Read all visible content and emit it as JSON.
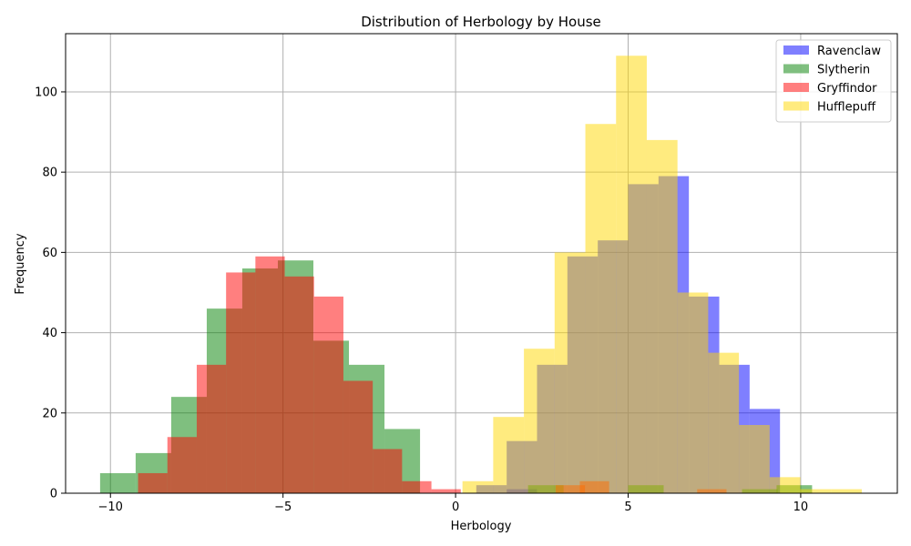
{
  "chart_data": {
    "type": "histogram",
    "title": "Distribution of Herbology by House",
    "xlabel": "Herbology",
    "ylabel": "Frequency",
    "xlim": [
      -11.3,
      12.8
    ],
    "ylim": [
      0,
      114.5
    ],
    "xticks": [
      -10,
      -5,
      0,
      5,
      10
    ],
    "yticks": [
      0,
      20,
      40,
      60,
      80,
      100
    ],
    "grid": true,
    "legend_position": "top-right",
    "series": [
      {
        "name": "Ravenclaw",
        "color": "#0000ff",
        "alpha": 0.5,
        "bin_width": 0.88,
        "bins": [
          {
            "x0": 0.6,
            "y": 2
          },
          {
            "x0": 1.48,
            "y": 1
          },
          {
            "x0": 1.48,
            "y": 13
          },
          {
            "x0": 2.36,
            "y": 32
          },
          {
            "x0": 3.24,
            "y": 59
          },
          {
            "x0": 4.12,
            "y": 63
          },
          {
            "x0": 5.0,
            "y": 77
          },
          {
            "x0": 5.88,
            "y": 79
          },
          {
            "x0": 6.76,
            "y": 49
          },
          {
            "x0": 7.64,
            "y": 32
          },
          {
            "x0": 8.52,
            "y": 21
          }
        ]
      },
      {
        "name": "Slytherin",
        "color": "#008000",
        "alpha": 0.5,
        "bin_width": 1.03,
        "bins": [
          {
            "x0": -10.3,
            "y": 5
          },
          {
            "x0": -9.27,
            "y": 10
          },
          {
            "x0": -8.24,
            "y": 24
          },
          {
            "x0": -7.21,
            "y": 46
          },
          {
            "x0": -6.18,
            "y": 56
          },
          {
            "x0": -5.15,
            "y": 58
          },
          {
            "x0": -4.12,
            "y": 38
          },
          {
            "x0": -3.09,
            "y": 32
          },
          {
            "x0": -2.06,
            "y": 16
          },
          {
            "x0": 2.1,
            "y": 2
          },
          {
            "x0": 5.0,
            "y": 2
          },
          {
            "x0": 8.3,
            "y": 1
          },
          {
            "x0": 9.3,
            "y": 2
          }
        ]
      },
      {
        "name": "Gryffindor",
        "color": "#ff0000",
        "alpha": 0.5,
        "bin_width": 0.85,
        "bins": [
          {
            "x0": -9.2,
            "y": 5
          },
          {
            "x0": -8.35,
            "y": 14
          },
          {
            "x0": -7.5,
            "y": 32
          },
          {
            "x0": -6.65,
            "y": 55
          },
          {
            "x0": -5.8,
            "y": 59
          },
          {
            "x0": -4.95,
            "y": 54
          },
          {
            "x0": -4.1,
            "y": 49
          },
          {
            "x0": -3.25,
            "y": 28
          },
          {
            "x0": -2.4,
            "y": 11
          },
          {
            "x0": -1.55,
            "y": 3
          },
          {
            "x0": -0.7,
            "y": 1
          },
          {
            "x0": 2.9,
            "y": 2
          },
          {
            "x0": 3.6,
            "y": 3
          },
          {
            "x0": 7.0,
            "y": 1
          }
        ]
      },
      {
        "name": "Hufflepuff",
        "color": "#ffd700",
        "alpha": 0.5,
        "bin_width": 0.89,
        "bins": [
          {
            "x0": 0.2,
            "y": 3
          },
          {
            "x0": 1.09,
            "y": 19
          },
          {
            "x0": 1.98,
            "y": 36
          },
          {
            "x0": 2.87,
            "y": 60
          },
          {
            "x0": 3.76,
            "y": 92
          },
          {
            "x0": 4.65,
            "y": 109
          },
          {
            "x0": 5.54,
            "y": 88
          },
          {
            "x0": 6.43,
            "y": 50
          },
          {
            "x0": 7.32,
            "y": 35
          },
          {
            "x0": 8.21,
            "y": 17
          },
          {
            "x0": 9.1,
            "y": 4
          },
          {
            "x0": 9.99,
            "y": 1
          },
          {
            "x0": 10.88,
            "y": 1
          }
        ]
      }
    ]
  }
}
